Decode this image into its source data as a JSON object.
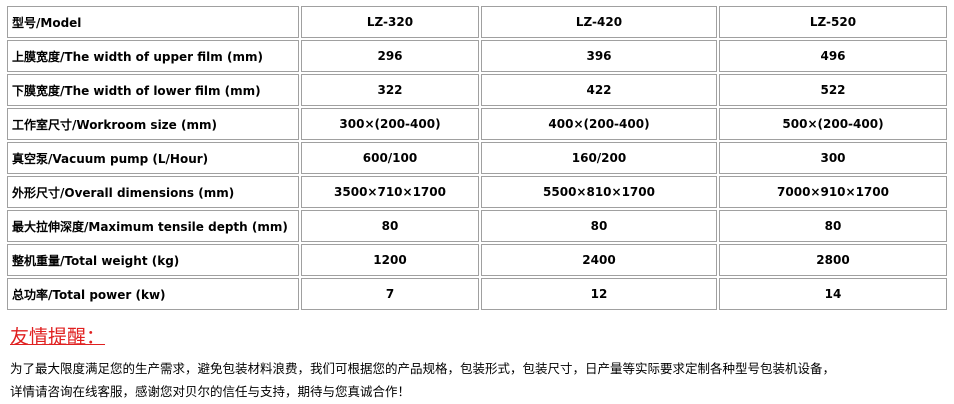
{
  "table": {
    "header": [
      "型号/Model",
      "LZ-320",
      "LZ-420",
      "LZ-520"
    ],
    "rows": [
      [
        "上膜宽度/The width of upper film (mm)",
        "296",
        "396",
        "496"
      ],
      [
        "下膜宽度/The width of lower film (mm)",
        "322",
        "422",
        "522"
      ],
      [
        "工作室尺寸/Workroom size (mm)",
        "300×(200-400)",
        "400×(200-400)",
        "500×(200-400)"
      ],
      [
        "真空泵/Vacuum pump (L/Hour)",
        "600/100",
        "160/200",
        "300"
      ],
      [
        "外形尺寸/Overall dimensions (mm)",
        "3500×710×1700",
        "5500×810×1700",
        "7000×910×1700"
      ],
      [
        "最大拉伸深度/Maximum tensile depth (mm)",
        "80",
        "80",
        "80"
      ],
      [
        "整机重量/Total weight (kg)",
        "1200",
        "2400",
        "2800"
      ],
      [
        "总功率/Total power (kw)",
        "7",
        "12",
        "14"
      ]
    ]
  },
  "notice": {
    "title": "友情提醒：",
    "lines": [
      "为了最大限度满足您的生产需求，避免包装材料浪费，我们可根据您的产品规格，包装形式，包装尺寸，日产量等实际要求定制各种型号包装机设备，",
      "详情请咨询在线客服，感谢您对贝尔的信任与支持，期待与您真诚合作！"
    ]
  }
}
